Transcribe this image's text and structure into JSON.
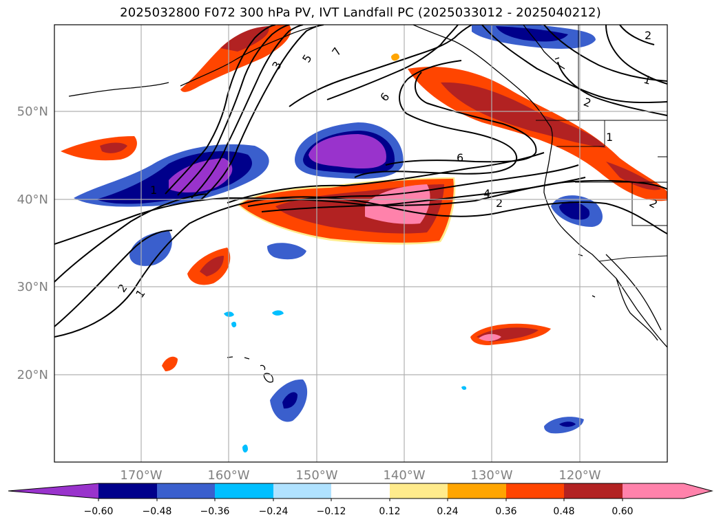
{
  "map": {
    "title": "2025032800 F072 300 hPa PV, IVT Landfall PC (2025033012 - 2025040212)",
    "lat_labels": [
      "50°N",
      "40°N",
      "30°N",
      "20°N"
    ],
    "lon_labels": [
      "170°W",
      "160°W",
      "150°W",
      "140°W",
      "130°W",
      "120°W"
    ],
    "contour_labels": [
      "1",
      "2",
      "3",
      "5",
      "7",
      "6",
      "6",
      "4",
      "2",
      "1",
      "2",
      "1",
      "2",
      "1",
      "2"
    ]
  },
  "colorbar": {
    "tick_labels": [
      "−0.60",
      "−0.48",
      "−0.36",
      "−0.24",
      "−0.12",
      "0.12",
      "0.24",
      "0.36",
      "0.48",
      "0.60"
    ],
    "colors": [
      "#9933cc",
      "#00008b",
      "#3a5fcd",
      "#00bfff",
      "#b0e2ff",
      "#ffffff",
      "#ffeb8c",
      "#ffa500",
      "#ff4500",
      "#b22222",
      "#ff82ab"
    ]
  }
}
